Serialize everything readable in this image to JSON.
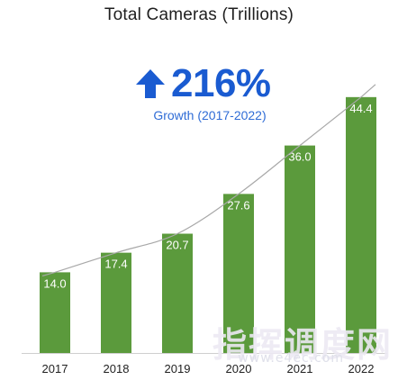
{
  "chart_data": {
    "type": "bar",
    "title": "Total Cameras (Trillions)",
    "categories": [
      "2017",
      "2018",
      "2019",
      "2020",
      "2021",
      "2022"
    ],
    "values": [
      14.0,
      17.4,
      20.7,
      27.6,
      36.0,
      44.4
    ],
    "value_labels": [
      "14.0",
      "17.4",
      "20.7",
      "27.6",
      "36.0",
      "44.4"
    ],
    "ylim": [
      0,
      50
    ],
    "grid": false,
    "bar_color": "#5b9a3c",
    "trend_line": true,
    "trend_color": "#a8a8a8",
    "annotation": {
      "icon": "up-arrow-icon",
      "value": "216%",
      "caption": "Growth (2017-2022)",
      "color": "#1a5bd1"
    }
  },
  "watermark": {
    "text": "指挥调度网",
    "subtext": "www.e4ec.com"
  }
}
